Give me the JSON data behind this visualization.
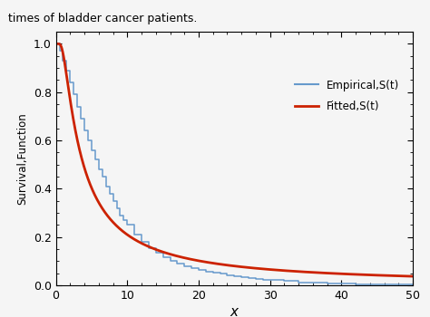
{
  "title": "",
  "xlabel": "x",
  "ylabel": "Survival,Function",
  "xlim": [
    0,
    50
  ],
  "ylim": [
    0.0,
    1.05
  ],
  "xticks": [
    0,
    10,
    20,
    30,
    40,
    50
  ],
  "yticks": [
    0.0,
    0.2,
    0.4,
    0.6,
    0.8,
    1.0
  ],
  "empirical_color": "#6699CC",
  "fitted_color": "#CC2200",
  "legend_labels": [
    "Empirical,S(t)",
    "Fitted,S(t)"
  ],
  "iw_beta": 1.134,
  "iw_sigma": 2.79,
  "background_color": "#f5f5f5",
  "top_text": "times of bladder cancer patients.",
  "km_times": [
    0.0,
    0.5,
    1.0,
    1.5,
    2.0,
    2.5,
    3.0,
    3.5,
    4.0,
    4.5,
    5.0,
    5.5,
    6.0,
    6.5,
    7.0,
    7.5,
    8.0,
    8.5,
    9.0,
    9.5,
    10.0,
    11.0,
    12.0,
    13.0,
    14.0,
    15.0,
    16.0,
    17.0,
    18.0,
    19.0,
    20.0,
    21.0,
    22.0,
    23.0,
    24.0,
    25.0,
    26.0,
    27.0,
    28.0,
    29.0,
    30.0,
    32.0,
    34.0,
    36.0,
    38.0,
    40.0,
    42.0,
    45.0,
    50.0
  ],
  "km_surv": [
    1.0,
    0.97,
    0.93,
    0.89,
    0.84,
    0.79,
    0.74,
    0.69,
    0.64,
    0.6,
    0.56,
    0.52,
    0.48,
    0.45,
    0.41,
    0.38,
    0.35,
    0.32,
    0.29,
    0.27,
    0.25,
    0.21,
    0.18,
    0.155,
    0.135,
    0.118,
    0.103,
    0.09,
    0.08,
    0.072,
    0.065,
    0.058,
    0.052,
    0.047,
    0.042,
    0.038,
    0.034,
    0.03,
    0.027,
    0.024,
    0.022,
    0.017,
    0.013,
    0.01,
    0.008,
    0.006,
    0.004,
    0.002,
    0.001
  ]
}
